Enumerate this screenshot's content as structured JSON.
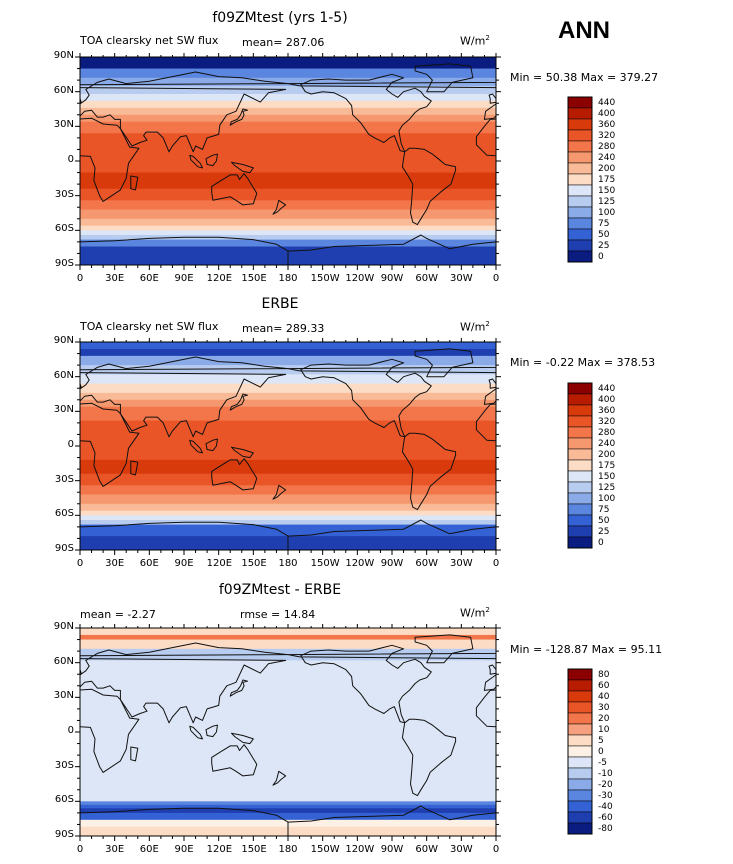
{
  "season": "ANN",
  "panels": [
    {
      "title": "f09ZMtest (yrs 1-5)",
      "left_label": "TOA clearsky net SW flux",
      "mean_label": "mean= 287.06",
      "units": "W/m",
      "units_sup": "2",
      "minmax": "Min =  50.38 Max = 379.27",
      "colorbar": [
        "440",
        "400",
        "360",
        "320",
        "280",
        "240",
        "200",
        "175",
        "150",
        "125",
        "100",
        "75",
        "50",
        "25",
        "0"
      ]
    },
    {
      "title": "ERBE",
      "left_label": "TOA clearsky net SW flux",
      "mean_label": "mean= 289.33",
      "units": "W/m",
      "units_sup": "2",
      "minmax": "Min =  -0.22 Max = 378.53",
      "colorbar": [
        "440",
        "400",
        "360",
        "320",
        "280",
        "240",
        "200",
        "175",
        "150",
        "125",
        "100",
        "75",
        "50",
        "25",
        "0"
      ]
    },
    {
      "title": "f09ZMtest - ERBE",
      "left_label": "mean =  -2.27",
      "mean_label": "rmse =  14.84",
      "units": "W/m",
      "units_sup": "2",
      "minmax": "Min = -128.87 Max =  95.11",
      "colorbar": [
        "80",
        "60",
        "40",
        "30",
        "20",
        "10",
        "5",
        "0",
        "-5",
        "-10",
        "-20",
        "-30",
        "-40",
        "-60",
        "-80"
      ]
    }
  ],
  "chart_data": [
    {
      "type": "heatmap",
      "title": "f09ZMtest (yrs 1-5)",
      "variable": "TOA clearsky net SW flux",
      "mean": 287.06,
      "min": 50.38,
      "max": 379.27,
      "units": "W/m2",
      "xticks": [
        "0",
        "30E",
        "60E",
        "90E",
        "120E",
        "150E",
        "180",
        "150W",
        "120W",
        "90W",
        "60W",
        "30W",
        "0"
      ],
      "yticks": [
        "90N",
        "60N",
        "30N",
        "0",
        "30S",
        "60S",
        "90S"
      ],
      "levels": [
        0,
        25,
        50,
        75,
        100,
        125,
        150,
        175,
        200,
        240,
        280,
        320,
        360,
        400,
        440
      ]
    },
    {
      "type": "heatmap",
      "title": "ERBE",
      "variable": "TOA clearsky net SW flux",
      "mean": 289.33,
      "min": -0.22,
      "max": 378.53,
      "units": "W/m2",
      "xticks": [
        "0",
        "30E",
        "60E",
        "90E",
        "120E",
        "150E",
        "180",
        "150W",
        "120W",
        "90W",
        "60W",
        "30W",
        "0"
      ],
      "yticks": [
        "90N",
        "60N",
        "30N",
        "0",
        "30S",
        "60S",
        "90S"
      ],
      "levels": [
        0,
        25,
        50,
        75,
        100,
        125,
        150,
        175,
        200,
        240,
        280,
        320,
        360,
        400,
        440
      ]
    },
    {
      "type": "heatmap",
      "title": "f09ZMtest - ERBE",
      "mean": -2.27,
      "rmse": 14.84,
      "min": -128.87,
      "max": 95.11,
      "units": "W/m2",
      "xticks": [
        "0",
        "30E",
        "60E",
        "90E",
        "120E",
        "150E",
        "180",
        "150W",
        "120W",
        "90W",
        "60W",
        "30W",
        "0"
      ],
      "yticks": [
        "90N",
        "60N",
        "30N",
        "0",
        "30S",
        "60S",
        "90S"
      ],
      "levels": [
        -80,
        -60,
        -40,
        -30,
        -20,
        -10,
        -5,
        0,
        5,
        10,
        20,
        30,
        40,
        60,
        80
      ]
    }
  ],
  "colors": {
    "abs_palette": [
      "#8b0000",
      "#b81c00",
      "#d83a0c",
      "#ea5528",
      "#f2764a",
      "#f6986f",
      "#f9ba98",
      "#fcdcc4",
      "#dce6f6",
      "#b8ccef",
      "#8aaae8",
      "#5b86e0",
      "#3462d4",
      "#1f3fb0",
      "#0a1c80"
    ],
    "diff_palette": [
      "#8b0000",
      "#b81c00",
      "#d83a0c",
      "#ea5528",
      "#f2764a",
      "#f6a080",
      "#fcdcc4",
      "#fdf0e4",
      "#dce6f6",
      "#b8ccef",
      "#8aaae8",
      "#5b86e0",
      "#3462d4",
      "#1f3fb0",
      "#0a1c80"
    ]
  }
}
